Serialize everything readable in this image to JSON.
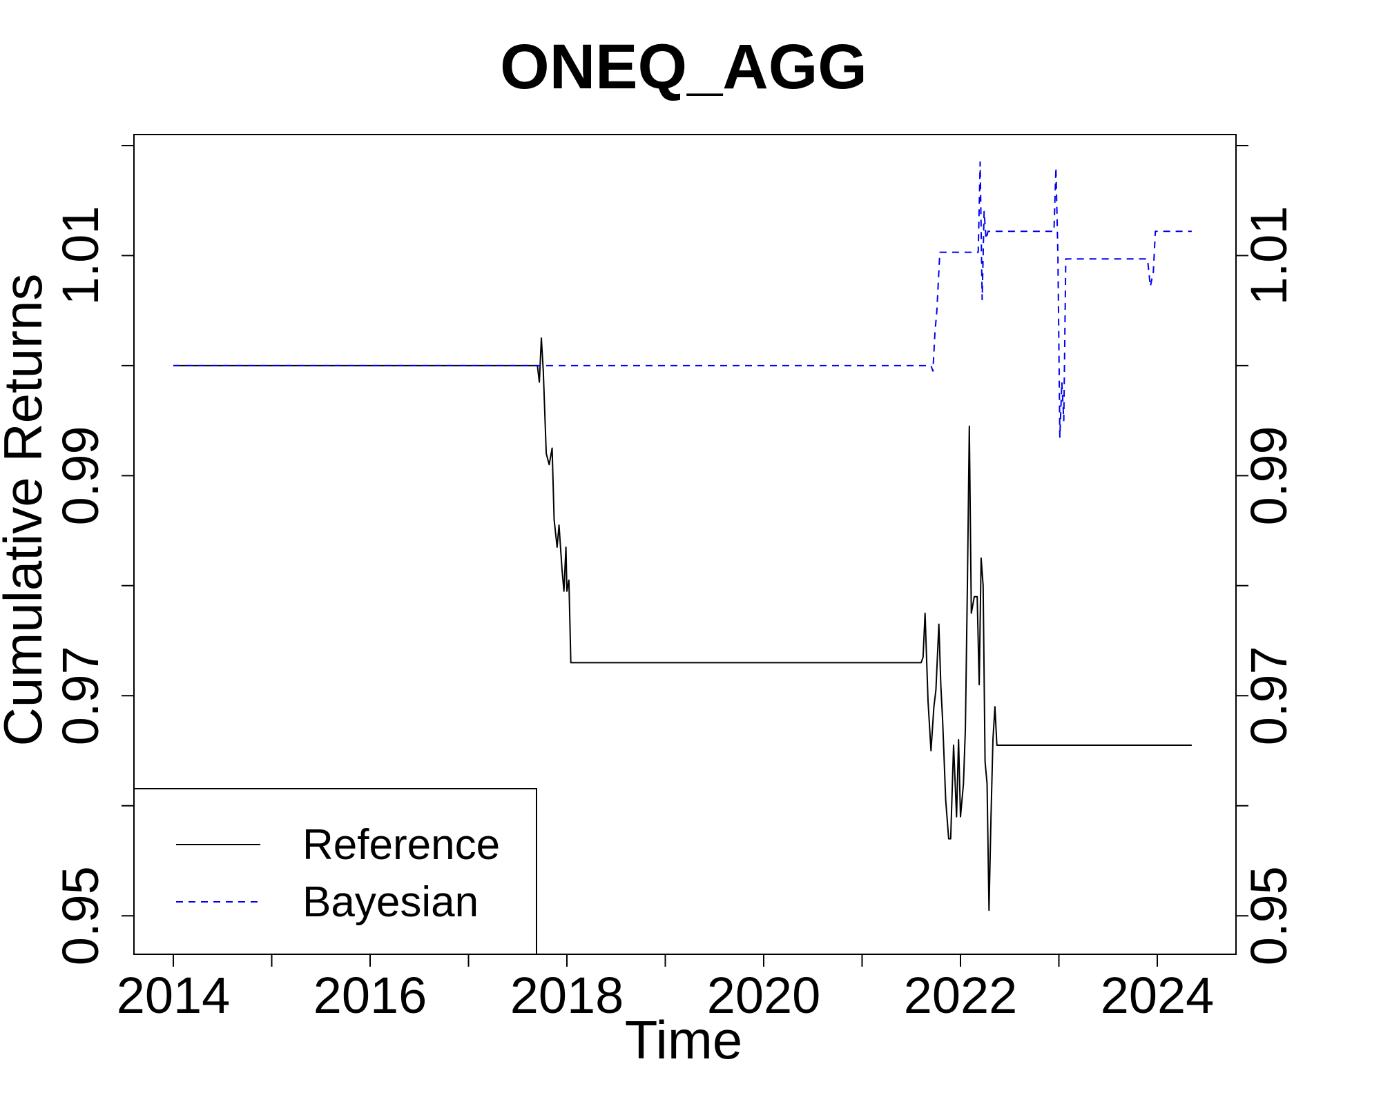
{
  "chart_data": {
    "type": "line",
    "title": "ONEQ_AGG",
    "xlabel": "Time",
    "ylabel": "Cumulative Returns",
    "xlim": [
      2013.6,
      2024.8
    ],
    "ylim": [
      0.9465,
      1.021
    ],
    "x_ticks": [
      2014,
      2016,
      2018,
      2020,
      2022,
      2024
    ],
    "x_minor_ticks": [
      2015,
      2017,
      2019,
      2021,
      2023
    ],
    "y_ticks": [
      0.95,
      0.97,
      0.99,
      1.01
    ],
    "y_minor_ticks": [
      0.96,
      0.98,
      1.0,
      1.02
    ],
    "grid": false,
    "legend_position": "bottom-left",
    "series": [
      {
        "name": "Reference",
        "color": "#000000",
        "style": "solid",
        "points": [
          [
            2014.0,
            1.0
          ],
          [
            2017.7,
            1.0
          ],
          [
            2017.72,
            0.9985
          ],
          [
            2017.74,
            1.0025
          ],
          [
            2017.76,
            0.9995
          ],
          [
            2017.79,
            0.992
          ],
          [
            2017.82,
            0.991
          ],
          [
            2017.85,
            0.9925
          ],
          [
            2017.87,
            0.986
          ],
          [
            2017.9,
            0.9835
          ],
          [
            2017.92,
            0.9855
          ],
          [
            2017.95,
            0.9815
          ],
          [
            2017.97,
            0.9795
          ],
          [
            2017.99,
            0.9835
          ],
          [
            2018.0,
            0.9795
          ],
          [
            2018.02,
            0.9805
          ],
          [
            2018.04,
            0.973
          ],
          [
            2021.6,
            0.973
          ],
          [
            2021.62,
            0.9735
          ],
          [
            2021.64,
            0.9775
          ],
          [
            2021.67,
            0.9695
          ],
          [
            2021.7,
            0.965
          ],
          [
            2021.73,
            0.969
          ],
          [
            2021.75,
            0.9705
          ],
          [
            2021.78,
            0.9765
          ],
          [
            2021.8,
            0.971
          ],
          [
            2021.82,
            0.9675
          ],
          [
            2021.85,
            0.9605
          ],
          [
            2021.88,
            0.957
          ],
          [
            2021.9,
            0.957
          ],
          [
            2021.93,
            0.9655
          ],
          [
            2021.96,
            0.959
          ],
          [
            2021.98,
            0.966
          ],
          [
            2022.0,
            0.959
          ],
          [
            2022.03,
            0.962
          ],
          [
            2022.05,
            0.967
          ],
          [
            2022.07,
            0.98
          ],
          [
            2022.09,
            0.9945
          ],
          [
            2022.11,
            0.9775
          ],
          [
            2022.14,
            0.979
          ],
          [
            2022.17,
            0.979
          ],
          [
            2022.19,
            0.971
          ],
          [
            2022.21,
            0.9825
          ],
          [
            2022.23,
            0.98
          ],
          [
            2022.25,
            0.964
          ],
          [
            2022.27,
            0.962
          ],
          [
            2022.29,
            0.9505
          ],
          [
            2022.31,
            0.959
          ],
          [
            2022.33,
            0.966
          ],
          [
            2022.35,
            0.969
          ],
          [
            2022.37,
            0.9655
          ],
          [
            2024.35,
            0.9655
          ]
        ]
      },
      {
        "name": "Bayesian",
        "color": "#0000ee",
        "style": "dashed",
        "points": [
          [
            2014.0,
            1.0
          ],
          [
            2021.7,
            1.0
          ],
          [
            2021.72,
            0.9995
          ],
          [
            2021.74,
            1.003
          ],
          [
            2021.76,
            1.005
          ],
          [
            2021.79,
            1.0103
          ],
          [
            2022.18,
            1.0103
          ],
          [
            2022.2,
            1.0185
          ],
          [
            2022.22,
            1.006
          ],
          [
            2022.24,
            1.014
          ],
          [
            2022.26,
            1.0115
          ],
          [
            2022.28,
            1.0122
          ],
          [
            2022.95,
            1.0122
          ],
          [
            2022.97,
            1.018
          ],
          [
            2022.99,
            1.01
          ],
          [
            2023.01,
            0.9935
          ],
          [
            2023.03,
            0.9985
          ],
          [
            2023.05,
            0.995
          ],
          [
            2023.07,
            1.0097
          ],
          [
            2023.9,
            1.0097
          ],
          [
            2023.93,
            1.0072
          ],
          [
            2023.96,
            1.0085
          ],
          [
            2023.98,
            1.0122
          ],
          [
            2024.35,
            1.0122
          ]
        ]
      }
    ]
  }
}
